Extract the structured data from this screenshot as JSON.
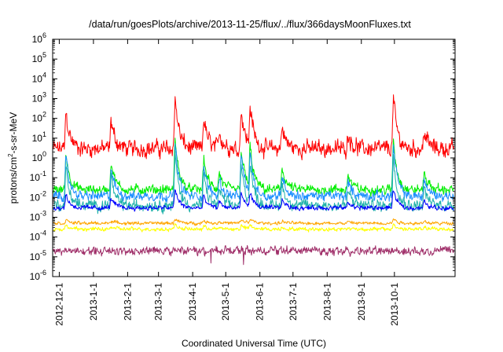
{
  "chart_data": {
    "type": "line",
    "title": "/data/run/goesPlots/archive/2013-11-25/flux/../flux/366daysMoonFluxes.txt",
    "xlabel": "Coordinated Universal Time (UTC)",
    "ylabel": "protons/cm²-s-sr-MeV",
    "ylabel_parts": {
      "base": "protons/cm",
      "sup": "2",
      "rest": "-s-sr-MeV"
    },
    "x_range": [
      "2012-11-25",
      "2013-11-25"
    ],
    "ylim": [
      1e-06,
      1000000.0
    ],
    "y_scale": "log",
    "grid": false,
    "legend": "none",
    "x_ticks": [
      "2012-12-1",
      "2013-1-1",
      "2013-2-1",
      "2013-3-1",
      "2013-4-1",
      "2013-5-1",
      "2013-6-1",
      "2013-7-1",
      "2013-8-1",
      "2013-9-1",
      "2013-10-1"
    ],
    "y_ticks": [
      {
        "base": "10",
        "exp": "-6"
      },
      {
        "base": "10",
        "exp": "-5"
      },
      {
        "base": "10",
        "exp": "-4"
      },
      {
        "base": "10",
        "exp": "-3"
      },
      {
        "base": "10",
        "exp": "-2"
      },
      {
        "base": "10",
        "exp": "-1"
      },
      {
        "base": "10",
        "exp": "0"
      },
      {
        "base": "10",
        "exp": "1"
      },
      {
        "base": "10",
        "exp": "2"
      },
      {
        "base": "10",
        "exp": "3"
      },
      {
        "base": "10",
        "exp": "4"
      },
      {
        "base": "10",
        "exp": "5"
      },
      {
        "base": "10",
        "exp": "6"
      }
    ],
    "events": [
      {
        "date": "2012-12-07",
        "factor": 80
      },
      {
        "date": "2013-01-17",
        "factor": 30
      },
      {
        "date": "2013-03-16",
        "factor": 500
      },
      {
        "date": "2013-04-11",
        "factor": 40
      },
      {
        "date": "2013-04-25",
        "factor": 8
      },
      {
        "date": "2013-05-15",
        "factor": 120
      },
      {
        "date": "2013-05-23",
        "factor": 200
      },
      {
        "date": "2013-06-21",
        "factor": 15
      },
      {
        "date": "2013-08-20",
        "factor": 6
      },
      {
        "date": "2013-09-30",
        "factor": 400
      },
      {
        "date": "2013-10-28",
        "factor": 8
      }
    ],
    "series": [
      {
        "color": "#ff0000",
        "base": 3,
        "noise": 0.5,
        "spike": 20,
        "width": 1.0
      },
      {
        "color": "#00ee00",
        "base": 0.025,
        "noise": 0.3,
        "spike": 4,
        "width": 1.0
      },
      {
        "color": "#1e90ff",
        "base": 0.012,
        "noise": 0.3,
        "spike": 2,
        "width": 1.0
      },
      {
        "color": "#20b2aa",
        "base": 0.004,
        "noise": 0.35,
        "spike": 1,
        "width": 1.0
      },
      {
        "color": "#0000ff",
        "base": 0.003,
        "noise": 0.15,
        "spike": 0.6,
        "width": 1.0
      },
      {
        "color": "#ffa500",
        "base": 0.0005,
        "noise": 0.1,
        "spike": 0.3,
        "width": 1.0
      },
      {
        "color": "#ffff00",
        "base": 0.00025,
        "noise": 0.12,
        "spike": 0.3,
        "width": 1.0
      },
      {
        "color": "#a0306a",
        "base": 2e-05,
        "noise": 0.25,
        "spike": 0.0,
        "width": 1.0
      }
    ]
  }
}
